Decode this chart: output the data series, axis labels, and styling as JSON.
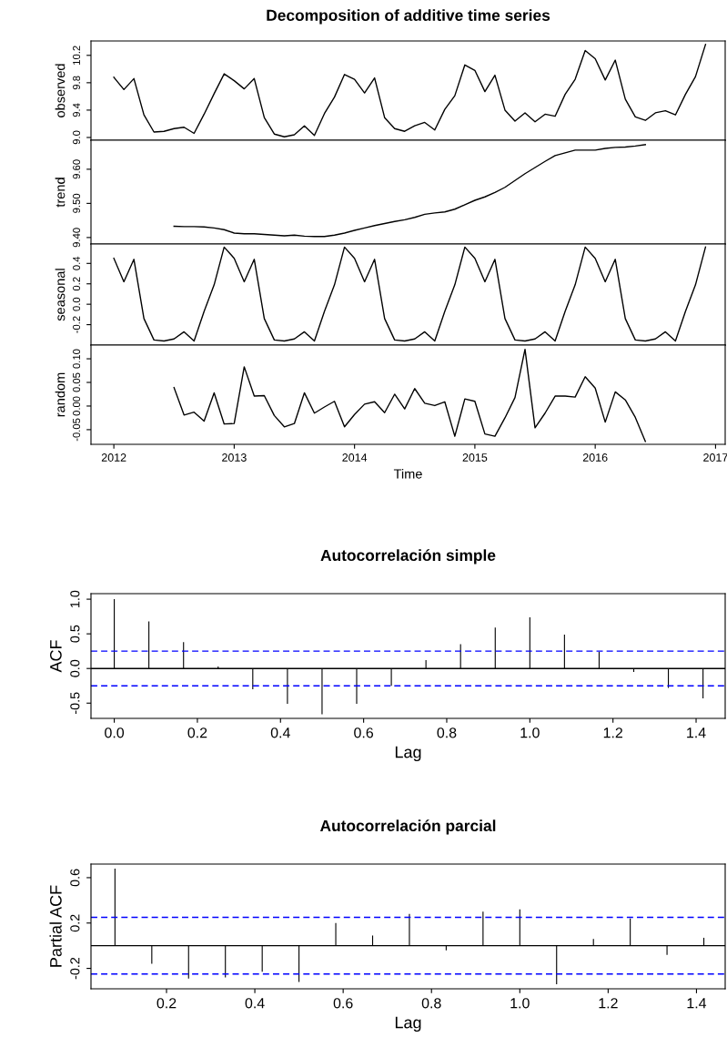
{
  "chart_data": [
    {
      "type": "line",
      "title": "Decomposition of additive time series",
      "ylabel": "observed",
      "tick_labels": "y",
      "x": [
        2012,
        2012.0833,
        2012.1667,
        2012.25,
        2012.3333,
        2012.4167,
        2012.5,
        2012.5833,
        2012.6667,
        2012.75,
        2012.8333,
        2012.9167,
        2013,
        2013.0833,
        2013.1667,
        2013.25,
        2013.3333,
        2013.4167,
        2013.5,
        2013.5833,
        2013.6667,
        2013.75,
        2013.8333,
        2013.9167,
        2014,
        2014.0833,
        2014.1667,
        2014.25,
        2014.3333,
        2014.4167,
        2014.5,
        2014.5833,
        2014.6667,
        2014.75,
        2014.8333,
        2014.9167,
        2015,
        2015.0833,
        2015.1667,
        2015.25,
        2015.3333,
        2015.4167,
        2015.5,
        2015.5833,
        2015.6667,
        2015.75,
        2015.8333,
        2015.9167,
        2016,
        2016.0833,
        2016.1667,
        2016.25,
        2016.3333,
        2016.4167,
        2016.5,
        2016.5833,
        2016.6667,
        2016.75,
        2016.8333,
        2016.9167
      ],
      "series": [
        {
          "color": "#000000",
          "values": [
            9.88,
            9.7,
            9.86,
            9.33,
            9.08,
            9.09,
            9.13,
            9.15,
            9.06,
            9.34,
            9.64,
            9.93,
            9.83,
            9.71,
            9.86,
            9.29,
            9.05,
            9.01,
            9.04,
            9.17,
            9.03,
            9.35,
            9.59,
            9.92,
            9.85,
            9.65,
            9.87,
            9.29,
            9.13,
            9.09,
            9.17,
            9.22,
            9.11,
            9.41,
            9.61,
            10.06,
            9.98,
            9.67,
            9.91,
            9.4,
            9.24,
            9.36,
            9.23,
            9.34,
            9.31,
            9.63,
            9.85,
            10.27,
            10.15,
            9.84,
            10.13,
            9.56,
            9.3,
            9.25,
            9.36,
            9.39,
            9.33,
            9.63,
            9.89,
            10.36
          ]
        }
      ],
      "xlim": [
        2011.81,
        2017.08
      ],
      "ylim": [
        8.96,
        10.41
      ],
      "xticks": [
        2012,
        2013,
        2014,
        2015,
        2016,
        2017
      ],
      "yticks": [
        {
          "value": 9.0,
          "label": "9.0"
        },
        {
          "value": 9.4,
          "label": "9.4"
        },
        {
          "value": 9.8,
          "label": "9.8"
        },
        {
          "value": 10.2,
          "label": "10.2"
        }
      ]
    },
    {
      "type": "line",
      "ylabel": "trend",
      "tick_labels": "y",
      "x": [
        2012.5,
        2012.5833,
        2012.6667,
        2012.75,
        2012.8333,
        2012.9167,
        2013,
        2013.0833,
        2013.1667,
        2013.25,
        2013.3333,
        2013.4167,
        2013.5,
        2013.5833,
        2013.6667,
        2013.75,
        2013.8333,
        2013.9167,
        2014,
        2014.0833,
        2014.1667,
        2014.25,
        2014.3333,
        2014.4167,
        2014.5,
        2014.5833,
        2014.6667,
        2014.75,
        2014.8333,
        2014.9167,
        2015,
        2015.0833,
        2015.1667,
        2015.25,
        2015.3333,
        2015.4167,
        2015.5,
        2015.5833,
        2015.6667,
        2015.75,
        2015.8333,
        2015.9167,
        2016,
        2016.0833,
        2016.1667,
        2016.25,
        2016.3333,
        2016.4167
      ],
      "series": [
        {
          "color": "#000000",
          "values": [
            9.433,
            9.432,
            9.432,
            9.431,
            9.428,
            9.423,
            9.413,
            9.411,
            9.411,
            9.409,
            9.407,
            9.405,
            9.407,
            9.404,
            9.403,
            9.403,
            9.407,
            9.413,
            9.421,
            9.428,
            9.435,
            9.441,
            9.447,
            9.452,
            9.459,
            9.468,
            9.472,
            9.475,
            9.483,
            9.496,
            9.509,
            9.519,
            9.532,
            9.547,
            9.567,
            9.587,
            9.605,
            9.623,
            9.64,
            9.648,
            9.656,
            9.656,
            9.656,
            9.661,
            9.664,
            9.665,
            9.668,
            9.672
          ]
        }
      ],
      "xlim": [
        2011.81,
        2017.08
      ],
      "ylim": [
        9.381,
        9.685
      ],
      "xticks": [
        2012,
        2013,
        2014,
        2015,
        2016,
        2017
      ],
      "yticks": [
        {
          "value": 9.4,
          "label": "9.40"
        },
        {
          "value": 9.5,
          "label": "9.50"
        },
        {
          "value": 9.6,
          "label": "9.60"
        }
      ]
    },
    {
      "type": "line",
      "ylabel": "seasonal",
      "tick_labels": "y",
      "x": [
        2012,
        2012.0833,
        2012.1667,
        2012.25,
        2012.3333,
        2012.4167,
        2012.5,
        2012.5833,
        2012.6667,
        2012.75,
        2012.8333,
        2012.9167,
        2013,
        2013.0833,
        2013.1667,
        2013.25,
        2013.3333,
        2013.4167,
        2013.5,
        2013.5833,
        2013.6667,
        2013.75,
        2013.8333,
        2013.9167,
        2014,
        2014.0833,
        2014.1667,
        2014.25,
        2014.3333,
        2014.4167,
        2014.5,
        2014.5833,
        2014.6667,
        2014.75,
        2014.8333,
        2014.9167,
        2015,
        2015.0833,
        2015.1667,
        2015.25,
        2015.3333,
        2015.4167,
        2015.5,
        2015.5833,
        2015.6667,
        2015.75,
        2015.8333,
        2015.9167,
        2016,
        2016.0833,
        2016.1667,
        2016.25,
        2016.3333,
        2016.4167,
        2016.5,
        2016.5833,
        2016.6667,
        2016.75,
        2016.8333,
        2016.9167
      ],
      "series": [
        {
          "color": "#000000",
          "values": [
            0.45,
            0.22,
            0.44,
            -0.14,
            -0.35,
            -0.36,
            -0.34,
            -0.27,
            -0.36,
            -0.07,
            0.19,
            0.56,
            0.45,
            0.22,
            0.44,
            -0.14,
            -0.35,
            -0.36,
            -0.34,
            -0.27,
            -0.36,
            -0.07,
            0.19,
            0.56,
            0.45,
            0.22,
            0.44,
            -0.14,
            -0.35,
            -0.36,
            -0.34,
            -0.27,
            -0.36,
            -0.07,
            0.19,
            0.56,
            0.45,
            0.22,
            0.44,
            -0.14,
            -0.35,
            -0.36,
            -0.34,
            -0.27,
            -0.36,
            -0.07,
            0.19,
            0.56,
            0.45,
            0.22,
            0.44,
            -0.14,
            -0.35,
            -0.36,
            -0.34,
            -0.27,
            -0.36,
            -0.07,
            0.19,
            0.56
          ]
        }
      ],
      "xlim": [
        2011.81,
        2017.08
      ],
      "ylim": [
        -0.4,
        0.59
      ],
      "xticks": [
        2012,
        2013,
        2014,
        2015,
        2016,
        2017
      ],
      "yticks": [
        {
          "value": -0.2,
          "label": "-0.2"
        },
        {
          "value": 0.0,
          "label": "0.0"
        },
        {
          "value": 0.2,
          "label": "0.2"
        },
        {
          "value": 0.4,
          "label": "0.4"
        }
      ]
    },
    {
      "type": "line",
      "ylabel": "random",
      "xlabel": "Time",
      "x": [
        2012.5,
        2012.5833,
        2012.6667,
        2012.75,
        2012.8333,
        2012.9167,
        2013,
        2013.0833,
        2013.1667,
        2013.25,
        2013.3333,
        2013.4167,
        2013.5,
        2013.5833,
        2013.6667,
        2013.75,
        2013.8333,
        2013.9167,
        2014,
        2014.0833,
        2014.1667,
        2014.25,
        2014.3333,
        2014.4167,
        2014.5,
        2014.5833,
        2014.6667,
        2014.75,
        2014.8333,
        2014.9167,
        2015,
        2015.0833,
        2015.1667,
        2015.25,
        2015.3333,
        2015.4167,
        2015.5,
        2015.5833,
        2015.6667,
        2015.75,
        2015.8333,
        2015.9167,
        2016,
        2016.0833,
        2016.1667,
        2016.25,
        2016.3333,
        2016.4167
      ],
      "series": [
        {
          "color": "#000000",
          "values": [
            0.039,
            -0.019,
            -0.013,
            -0.032,
            0.028,
            -0.038,
            -0.037,
            0.083,
            0.021,
            0.022,
            -0.02,
            -0.044,
            -0.037,
            0.028,
            -0.015,
            -0.002,
            0.01,
            -0.044,
            -0.018,
            0.004,
            0.009,
            -0.014,
            0.025,
            -0.006,
            0.037,
            0.006,
            0.001,
            0.009,
            -0.064,
            0.015,
            0.01,
            -0.059,
            -0.064,
            -0.025,
            0.018,
            0.12,
            -0.046,
            -0.015,
            0.021,
            0.021,
            0.019,
            0.062,
            0.038,
            -0.034,
            0.03,
            0.013,
            -0.024,
            -0.075
          ]
        }
      ],
      "xlim": [
        2011.81,
        2017.08
      ],
      "ylim": [
        -0.081,
        0.129
      ],
      "xticks": [
        2012,
        2013,
        2014,
        2015,
        2016,
        2017
      ],
      "yticks": [
        {
          "value": -0.05,
          "label": "-0.05"
        },
        {
          "value": 0.0,
          "label": "0.00"
        },
        {
          "value": 0.05,
          "label": "0.05"
        },
        {
          "value": 0.1,
          "label": "0.10"
        }
      ]
    },
    {
      "type": "bar",
      "title": "Autocorrelación simple",
      "xlabel": "Lag",
      "ylabel": "ACF",
      "x": [
        0,
        0.0833,
        0.1667,
        0.25,
        0.3333,
        0.4167,
        0.5,
        0.5833,
        0.6667,
        0.75,
        0.8333,
        0.9167,
        1,
        1.0833,
        1.1667,
        1.25,
        1.3333,
        1.4167
      ],
      "series": [
        {
          "color": "#000000",
          "values": [
            1.0,
            0.68,
            0.38,
            0.03,
            -0.3,
            -0.51,
            -0.66,
            -0.51,
            -0.25,
            0.12,
            0.35,
            0.59,
            0.74,
            0.49,
            0.24,
            -0.05,
            -0.28,
            -0.43
          ]
        }
      ],
      "xlim": [
        -0.056,
        1.47
      ],
      "ylim": [
        -0.72,
        1.08
      ],
      "xticks": [
        {
          "value": 0.0,
          "label": "0.0"
        },
        {
          "value": 0.2,
          "label": "0.2"
        },
        {
          "value": 0.4,
          "label": "0.4"
        },
        {
          "value": 0.6,
          "label": "0.6"
        },
        {
          "value": 0.8,
          "label": "0.8"
        },
        {
          "value": 1.0,
          "label": "1.0"
        },
        {
          "value": 1.2,
          "label": "1.2"
        },
        {
          "value": 1.4,
          "label": "1.4"
        }
      ],
      "yticks": [
        {
          "value": -0.5,
          "label": "-0.5"
        },
        {
          "value": 0.0,
          "label": "0.0"
        },
        {
          "value": 0.5,
          "label": "0.5"
        },
        {
          "value": 1.0,
          "label": "1.0"
        }
      ],
      "ref_lines": [
        {
          "axis": "y",
          "value": 0,
          "color": "#000000",
          "line_style": "solid"
        },
        {
          "axis": "y",
          "value": 0.25,
          "color": "#0000ff",
          "line_style": "dashed"
        },
        {
          "axis": "y",
          "value": -0.25,
          "color": "#0000ff",
          "line_style": "dashed"
        }
      ]
    },
    {
      "type": "bar",
      "title": "Autocorrelación parcial",
      "xlabel": "Lag",
      "ylabel": "Partial ACF",
      "x": [
        0.0833,
        0.1667,
        0.25,
        0.3333,
        0.4167,
        0.5,
        0.5833,
        0.6667,
        0.75,
        0.8333,
        0.9167,
        1,
        1.0833,
        1.1667,
        1.25,
        1.3333,
        1.4167
      ],
      "series": [
        {
          "color": "#000000",
          "values": [
            0.68,
            -0.16,
            -0.29,
            -0.28,
            -0.23,
            -0.32,
            0.2,
            0.09,
            0.28,
            -0.04,
            0.3,
            0.32,
            -0.34,
            0.06,
            0.24,
            -0.08,
            0.07
          ]
        }
      ],
      "xlim": [
        0.029,
        1.465
      ],
      "ylim": [
        -0.38,
        0.72
      ],
      "xticks": [
        {
          "value": 0.2,
          "label": "0.2"
        },
        {
          "value": 0.4,
          "label": "0.4"
        },
        {
          "value": 0.6,
          "label": "0.6"
        },
        {
          "value": 0.8,
          "label": "0.8"
        },
        {
          "value": 1.0,
          "label": "1.0"
        },
        {
          "value": 1.2,
          "label": "1.2"
        },
        {
          "value": 1.4,
          "label": "1.4"
        }
      ],
      "yticks": [
        {
          "value": -0.2,
          "label": "-0.2"
        },
        {
          "value": 0.2,
          "label": "0.2"
        },
        {
          "value": 0.6,
          "label": "0.6"
        }
      ],
      "ref_lines": [
        {
          "axis": "y",
          "value": 0,
          "color": "#000000",
          "line_style": "solid"
        },
        {
          "axis": "y",
          "value": 0.25,
          "color": "#0000ff",
          "line_style": "dashed"
        },
        {
          "axis": "y",
          "value": -0.25,
          "color": "#0000ff",
          "line_style": "dashed"
        }
      ]
    }
  ]
}
